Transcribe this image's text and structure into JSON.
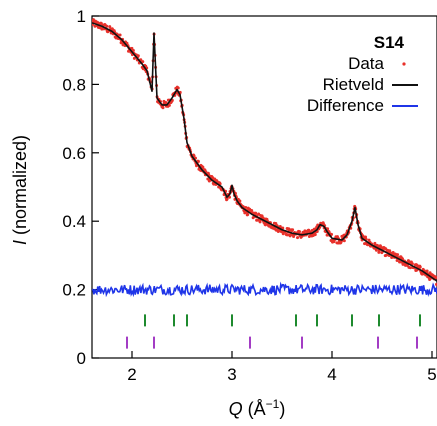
{
  "chart_data": {
    "type": "line",
    "title": "S14",
    "xlabel_symbol": "Q",
    "xlabel_unit_prefix": " (Å",
    "xlabel_unit_exp": "−1",
    "xlabel_unit_suffix": ")",
    "ylabel_symbol": "I",
    "ylabel_text": " (normalized)",
    "xlim": [
      1.6,
      5.05
    ],
    "ylim": [
      0,
      1.0
    ],
    "x_ticks": [
      2,
      3,
      4,
      5
    ],
    "x_tick_labels": [
      "2",
      "3",
      "4",
      "5"
    ],
    "y_ticks": [
      0,
      0.2,
      0.4,
      0.6,
      0.8,
      1.0
    ],
    "y_tick_labels": [
      "0",
      "0.2",
      "0.4",
      "0.6",
      "0.8",
      "1"
    ],
    "legend_position": "top-right",
    "series": [
      {
        "name": "Data",
        "style": "points",
        "color": "#e8302a",
        "x": [
          1.6,
          1.7,
          1.8,
          1.9,
          2.0,
          2.1,
          2.15,
          2.2,
          2.22,
          2.25,
          2.3,
          2.35,
          2.4,
          2.45,
          2.48,
          2.52,
          2.55,
          2.6,
          2.7,
          2.8,
          2.9,
          2.95,
          2.98,
          3.0,
          3.02,
          3.05,
          3.1,
          3.2,
          3.3,
          3.4,
          3.5,
          3.6,
          3.7,
          3.8,
          3.85,
          3.88,
          3.92,
          3.95,
          4.0,
          4.1,
          4.15,
          4.2,
          4.23,
          4.26,
          4.3,
          4.4,
          4.5,
          4.6,
          4.7,
          4.8,
          4.9,
          5.0,
          5.05
        ],
        "y": [
          0.98,
          0.97,
          0.955,
          0.93,
          0.895,
          0.86,
          0.84,
          0.78,
          0.95,
          0.76,
          0.74,
          0.74,
          0.76,
          0.785,
          0.77,
          0.7,
          0.63,
          0.59,
          0.55,
          0.52,
          0.5,
          0.47,
          0.48,
          0.505,
          0.48,
          0.46,
          0.44,
          0.42,
          0.405,
          0.39,
          0.375,
          0.365,
          0.36,
          0.365,
          0.375,
          0.39,
          0.385,
          0.37,
          0.35,
          0.345,
          0.36,
          0.4,
          0.44,
          0.39,
          0.35,
          0.33,
          0.315,
          0.3,
          0.285,
          0.27,
          0.255,
          0.235,
          0.225
        ]
      },
      {
        "name": "Rietveld",
        "style": "line",
        "color": "#111111",
        "x": [
          1.6,
          1.7,
          1.8,
          1.9,
          2.0,
          2.1,
          2.15,
          2.2,
          2.22,
          2.25,
          2.3,
          2.35,
          2.4,
          2.45,
          2.48,
          2.52,
          2.55,
          2.6,
          2.7,
          2.8,
          2.9,
          2.95,
          2.98,
          3.0,
          3.02,
          3.05,
          3.1,
          3.2,
          3.3,
          3.4,
          3.5,
          3.6,
          3.7,
          3.8,
          3.85,
          3.88,
          3.92,
          3.95,
          4.0,
          4.1,
          4.15,
          4.2,
          4.23,
          4.26,
          4.3,
          4.4,
          4.5,
          4.6,
          4.7,
          4.8,
          4.9,
          5.0,
          5.05
        ],
        "y": [
          0.98,
          0.97,
          0.955,
          0.93,
          0.895,
          0.86,
          0.84,
          0.78,
          0.95,
          0.76,
          0.74,
          0.74,
          0.76,
          0.785,
          0.77,
          0.7,
          0.63,
          0.59,
          0.55,
          0.52,
          0.5,
          0.47,
          0.48,
          0.505,
          0.48,
          0.46,
          0.44,
          0.42,
          0.405,
          0.39,
          0.375,
          0.365,
          0.36,
          0.365,
          0.375,
          0.39,
          0.385,
          0.37,
          0.35,
          0.345,
          0.36,
          0.4,
          0.44,
          0.39,
          0.35,
          0.33,
          0.315,
          0.3,
          0.285,
          0.27,
          0.255,
          0.235,
          0.225
        ]
      },
      {
        "name": "Difference",
        "style": "line",
        "color": "#1f35e8",
        "x": [
          1.6,
          1.7,
          1.8,
          1.9,
          2.0,
          2.1,
          2.2,
          2.3,
          2.4,
          2.5,
          2.6,
          2.7,
          2.8,
          2.9,
          3.0,
          3.1,
          3.2,
          3.3,
          3.4,
          3.5,
          3.6,
          3.7,
          3.8,
          3.9,
          4.0,
          4.1,
          4.2,
          4.3,
          4.4,
          4.5,
          4.6,
          4.7,
          4.8,
          4.9,
          5.0,
          5.05
        ],
        "y": [
          0.2,
          0.2,
          0.2,
          0.2,
          0.2,
          0.2,
          0.2,
          0.2,
          0.2,
          0.2,
          0.2,
          0.2,
          0.2,
          0.2,
          0.2,
          0.2,
          0.2,
          0.2,
          0.2,
          0.2,
          0.2,
          0.2,
          0.2,
          0.2,
          0.2,
          0.2,
          0.2,
          0.2,
          0.2,
          0.2,
          0.2,
          0.2,
          0.2,
          0.2,
          0.2,
          0.2
        ]
      }
    ],
    "tick_marks": [
      {
        "color": "#1e8a2e",
        "y": 0.11,
        "x": [
          2.13,
          2.42,
          2.55,
          3.0,
          3.64,
          3.85,
          4.2,
          4.47,
          4.88
        ]
      },
      {
        "color": "#a33cc4",
        "y": 0.045,
        "x": [
          1.95,
          2.22,
          3.18,
          3.7,
          4.46,
          4.85
        ]
      }
    ]
  }
}
